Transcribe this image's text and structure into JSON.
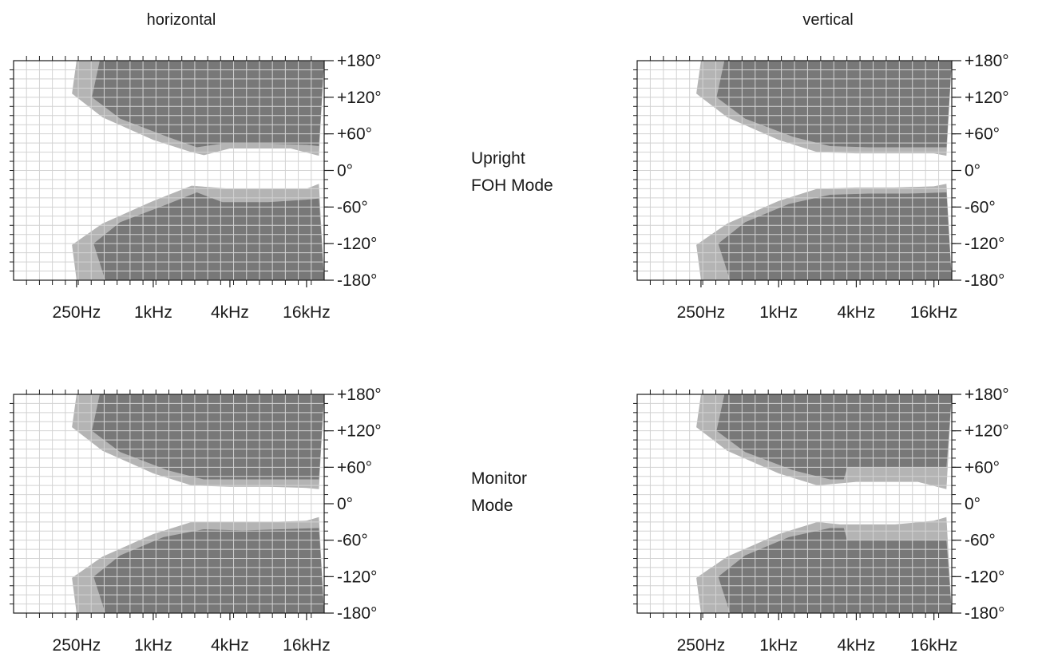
{
  "column_titles": {
    "horizontal": "horizontal",
    "vertical": "vertical"
  },
  "mode_labels": {
    "upright": [
      "Upright",
      "FOH Mode"
    ],
    "monitor": [
      "Monitor",
      "Mode"
    ]
  },
  "colors": {
    "outer_contour": "#b4b4b4",
    "inner_contour": "#787878",
    "grid": "#d2d2d2",
    "axis": "#1a1a1a",
    "background": "#ffffff"
  },
  "chart_data": [
    {
      "type": "heatmap",
      "id": "upright-horizontal",
      "title": "horizontal",
      "mode": "Upright FOH Mode",
      "xscale": "log",
      "xlim_hz": [
        80,
        22000
      ],
      "ylim_deg": [
        -180,
        180
      ],
      "x_tick_labels": [
        "250Hz",
        "1kHz",
        "4kHz",
        "16kHz"
      ],
      "y_tick_labels": [
        "+180°",
        "+120°",
        "+60°",
        "0°",
        "-60°",
        "-120°",
        "-180°"
      ],
      "contours": [
        {
          "name": "outer",
          "top_edge": [
            [
              250,
              180
            ],
            [
              250,
              180
            ],
            [
              230,
              126
            ],
            [
              400,
              87
            ],
            [
              1000,
              50
            ],
            [
              2000,
              30
            ],
            [
              2500,
              25
            ],
            [
              4000,
              36
            ],
            [
              8000,
              36
            ],
            [
              12000,
              36
            ],
            [
              20000,
              24
            ]
          ],
          "bottom_edge": [
            [
              250,
              -180
            ],
            [
              230,
              -122
            ],
            [
              400,
              -87
            ],
            [
              1000,
              -50
            ],
            [
              2000,
              -25
            ],
            [
              4000,
              -30
            ],
            [
              8000,
              -30
            ],
            [
              16000,
              -30
            ],
            [
              20000,
              -22
            ]
          ]
        },
        {
          "name": "inner",
          "top_edge": [
            [
              380,
              180
            ],
            [
              330,
              120
            ],
            [
              550,
              85
            ],
            [
              1300,
              55
            ],
            [
              2200,
              38
            ],
            [
              3500,
              44
            ],
            [
              8000,
              44
            ],
            [
              16000,
              42
            ],
            [
              20000,
              40
            ]
          ],
          "bottom_edge": [
            [
              420,
              -180
            ],
            [
              340,
              -120
            ],
            [
              550,
              -85
            ],
            [
              1200,
              -58
            ],
            [
              2200,
              -36
            ],
            [
              3500,
              -52
            ],
            [
              8000,
              -52
            ],
            [
              16000,
              -48
            ],
            [
              20000,
              -46
            ]
          ]
        }
      ]
    },
    {
      "type": "heatmap",
      "id": "upright-vertical",
      "title": "vertical",
      "mode": "Upright FOH Mode",
      "xscale": "log",
      "xlim_hz": [
        80,
        22000
      ],
      "ylim_deg": [
        -180,
        180
      ],
      "x_tick_labels": [
        "250Hz",
        "1kHz",
        "4kHz",
        "16kHz"
      ],
      "y_tick_labels": [
        "+180°",
        "+120°",
        "+60°",
        "0°",
        "-60°",
        "-120°",
        "-180°"
      ],
      "contours": [
        {
          "name": "outer",
          "top_edge": [
            [
              250,
              180
            ],
            [
              250,
              180
            ],
            [
              230,
              126
            ],
            [
              400,
              87
            ],
            [
              1000,
              50
            ],
            [
              2000,
              30
            ],
            [
              4000,
              28
            ],
            [
              8000,
              28
            ],
            [
              16000,
              28
            ],
            [
              20000,
              24
            ]
          ],
          "bottom_edge": [
            [
              250,
              -180
            ],
            [
              230,
              -122
            ],
            [
              400,
              -87
            ],
            [
              1000,
              -50
            ],
            [
              2000,
              -30
            ],
            [
              4000,
              -28
            ],
            [
              8000,
              -28
            ],
            [
              16000,
              -26
            ],
            [
              20000,
              -22
            ]
          ]
        },
        {
          "name": "inner",
          "top_edge": [
            [
              380,
              180
            ],
            [
              330,
              120
            ],
            [
              550,
              85
            ],
            [
              1300,
              55
            ],
            [
              2500,
              40
            ],
            [
              5000,
              38
            ],
            [
              10000,
              38
            ],
            [
              20000,
              38
            ]
          ],
          "bottom_edge": [
            [
              420,
              -180
            ],
            [
              340,
              -120
            ],
            [
              550,
              -85
            ],
            [
              1200,
              -55
            ],
            [
              2500,
              -40
            ],
            [
              5000,
              -38
            ],
            [
              10000,
              -38
            ],
            [
              20000,
              -36
            ]
          ]
        }
      ]
    },
    {
      "type": "heatmap",
      "id": "monitor-horizontal",
      "title": "horizontal",
      "mode": "Monitor Mode",
      "xscale": "log",
      "xlim_hz": [
        80,
        22000
      ],
      "ylim_deg": [
        -180,
        180
      ],
      "x_tick_labels": [
        "250Hz",
        "1kHz",
        "4kHz",
        "16kHz"
      ],
      "y_tick_labels": [
        "+180°",
        "+120°",
        "+60°",
        "0°",
        "-60°",
        "-120°",
        "-180°"
      ],
      "contours": [
        {
          "name": "outer",
          "top_edge": [
            [
              250,
              180
            ],
            [
              250,
              180
            ],
            [
              230,
              126
            ],
            [
              400,
              87
            ],
            [
              1000,
              50
            ],
            [
              2000,
              30
            ],
            [
              4000,
              28
            ],
            [
              8000,
              28
            ],
            [
              16000,
              26
            ],
            [
              20000,
              24
            ]
          ],
          "bottom_edge": [
            [
              250,
              -180
            ],
            [
              230,
              -122
            ],
            [
              400,
              -87
            ],
            [
              1000,
              -50
            ],
            [
              2000,
              -30
            ],
            [
              4000,
              -30
            ],
            [
              8000,
              -30
            ],
            [
              16000,
              -28
            ],
            [
              20000,
              -22
            ]
          ]
        },
        {
          "name": "inner",
          "top_edge": [
            [
              380,
              180
            ],
            [
              330,
              120
            ],
            [
              550,
              85
            ],
            [
              1300,
              55
            ],
            [
              2500,
              40
            ],
            [
              5000,
              40
            ],
            [
              10000,
              40
            ],
            [
              20000,
              40
            ]
          ],
          "bottom_edge": [
            [
              420,
              -180
            ],
            [
              340,
              -120
            ],
            [
              550,
              -85
            ],
            [
              1200,
              -55
            ],
            [
              2500,
              -42
            ],
            [
              5000,
              -44
            ],
            [
              10000,
              -42
            ],
            [
              20000,
              -40
            ]
          ]
        }
      ]
    },
    {
      "type": "heatmap",
      "id": "monitor-vertical",
      "title": "vertical",
      "mode": "Monitor Mode",
      "xscale": "log",
      "xlim_hz": [
        80,
        22000
      ],
      "ylim_deg": [
        -180,
        180
      ],
      "x_tick_labels": [
        "250Hz",
        "1kHz",
        "4kHz",
        "16kHz"
      ],
      "y_tick_labels": [
        "+180°",
        "+120°",
        "+60°",
        "0°",
        "-60°",
        "-120°",
        "-180°"
      ],
      "contours": [
        {
          "name": "outer",
          "top_edge": [
            [
              250,
              180
            ],
            [
              250,
              180
            ],
            [
              230,
              126
            ],
            [
              400,
              87
            ],
            [
              1000,
              50
            ],
            [
              2000,
              30
            ],
            [
              4000,
              36
            ],
            [
              8000,
              36
            ],
            [
              12000,
              36
            ],
            [
              20000,
              24
            ]
          ],
          "bottom_edge": [
            [
              250,
              -180
            ],
            [
              230,
              -122
            ],
            [
              400,
              -87
            ],
            [
              1000,
              -50
            ],
            [
              2000,
              -30
            ],
            [
              3000,
              -34
            ],
            [
              8000,
              -34
            ],
            [
              16000,
              -28
            ],
            [
              20000,
              -22
            ]
          ]
        },
        {
          "name": "inner",
          "top_edge": [
            [
              380,
              180
            ],
            [
              330,
              120
            ],
            [
              550,
              85
            ],
            [
              1300,
              55
            ],
            [
              2500,
              40
            ],
            [
              3200,
              40
            ],
            [
              3400,
              60
            ],
            [
              8000,
              60
            ],
            [
              16000,
              60
            ],
            [
              20000,
              60
            ]
          ],
          "bottom_edge": [
            [
              420,
              -180
            ],
            [
              340,
              -120
            ],
            [
              550,
              -85
            ],
            [
              1200,
              -55
            ],
            [
              2500,
              -40
            ],
            [
              3200,
              -40
            ],
            [
              3400,
              -60
            ],
            [
              8000,
              -60
            ],
            [
              16000,
              -60
            ],
            [
              20000,
              -60
            ]
          ]
        }
      ]
    }
  ]
}
